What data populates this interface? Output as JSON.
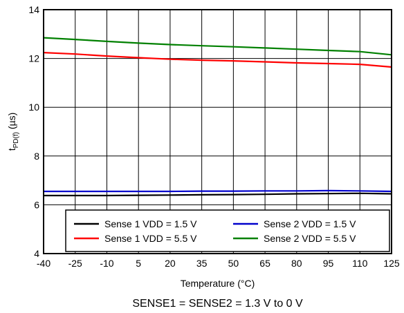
{
  "chart_data": {
    "type": "line",
    "xlabel": "Temperature (°C)",
    "ylabel_main": "t",
    "ylabel_sub": "PD(f)",
    "ylabel_unit": " (µs)",
    "caption": "SENSE1 = SENSE2 = 1.3 V to 0 V",
    "xlim": [
      -40,
      125
    ],
    "ylim": [
      4,
      14
    ],
    "grid": true,
    "legend_placement": "bottom-right",
    "x_ticks": [
      -40,
      -25,
      -10,
      5,
      20,
      35,
      50,
      65,
      80,
      95,
      110,
      125
    ],
    "y_ticks": [
      4,
      6,
      8,
      10,
      12,
      14
    ],
    "x": [
      -40,
      -25,
      -10,
      5,
      20,
      35,
      50,
      65,
      80,
      95,
      110,
      125
    ],
    "series": [
      {
        "name": "Sense 1 VDD = 1.5 V",
        "color": "#000000",
        "values": [
          6.38,
          6.38,
          6.38,
          6.39,
          6.4,
          6.41,
          6.42,
          6.43,
          6.45,
          6.46,
          6.47,
          6.45
        ]
      },
      {
        "name": "Sense 2 VDD = 1.5 V",
        "color": "#0000cc",
        "values": [
          6.55,
          6.55,
          6.55,
          6.55,
          6.55,
          6.56,
          6.56,
          6.57,
          6.57,
          6.58,
          6.57,
          6.55
        ]
      },
      {
        "name": "Sense 1 VDD = 5.5 V",
        "color": "#ff0000",
        "values": [
          12.24,
          12.18,
          12.1,
          12.03,
          11.97,
          11.93,
          11.9,
          11.86,
          11.82,
          11.79,
          11.76,
          11.65
        ]
      },
      {
        "name": "Sense 2 VDD = 5.5 V",
        "color": "#008000",
        "values": [
          12.85,
          12.78,
          12.7,
          12.63,
          12.57,
          12.52,
          12.48,
          12.43,
          12.38,
          12.33,
          12.28,
          12.15
        ]
      }
    ]
  }
}
